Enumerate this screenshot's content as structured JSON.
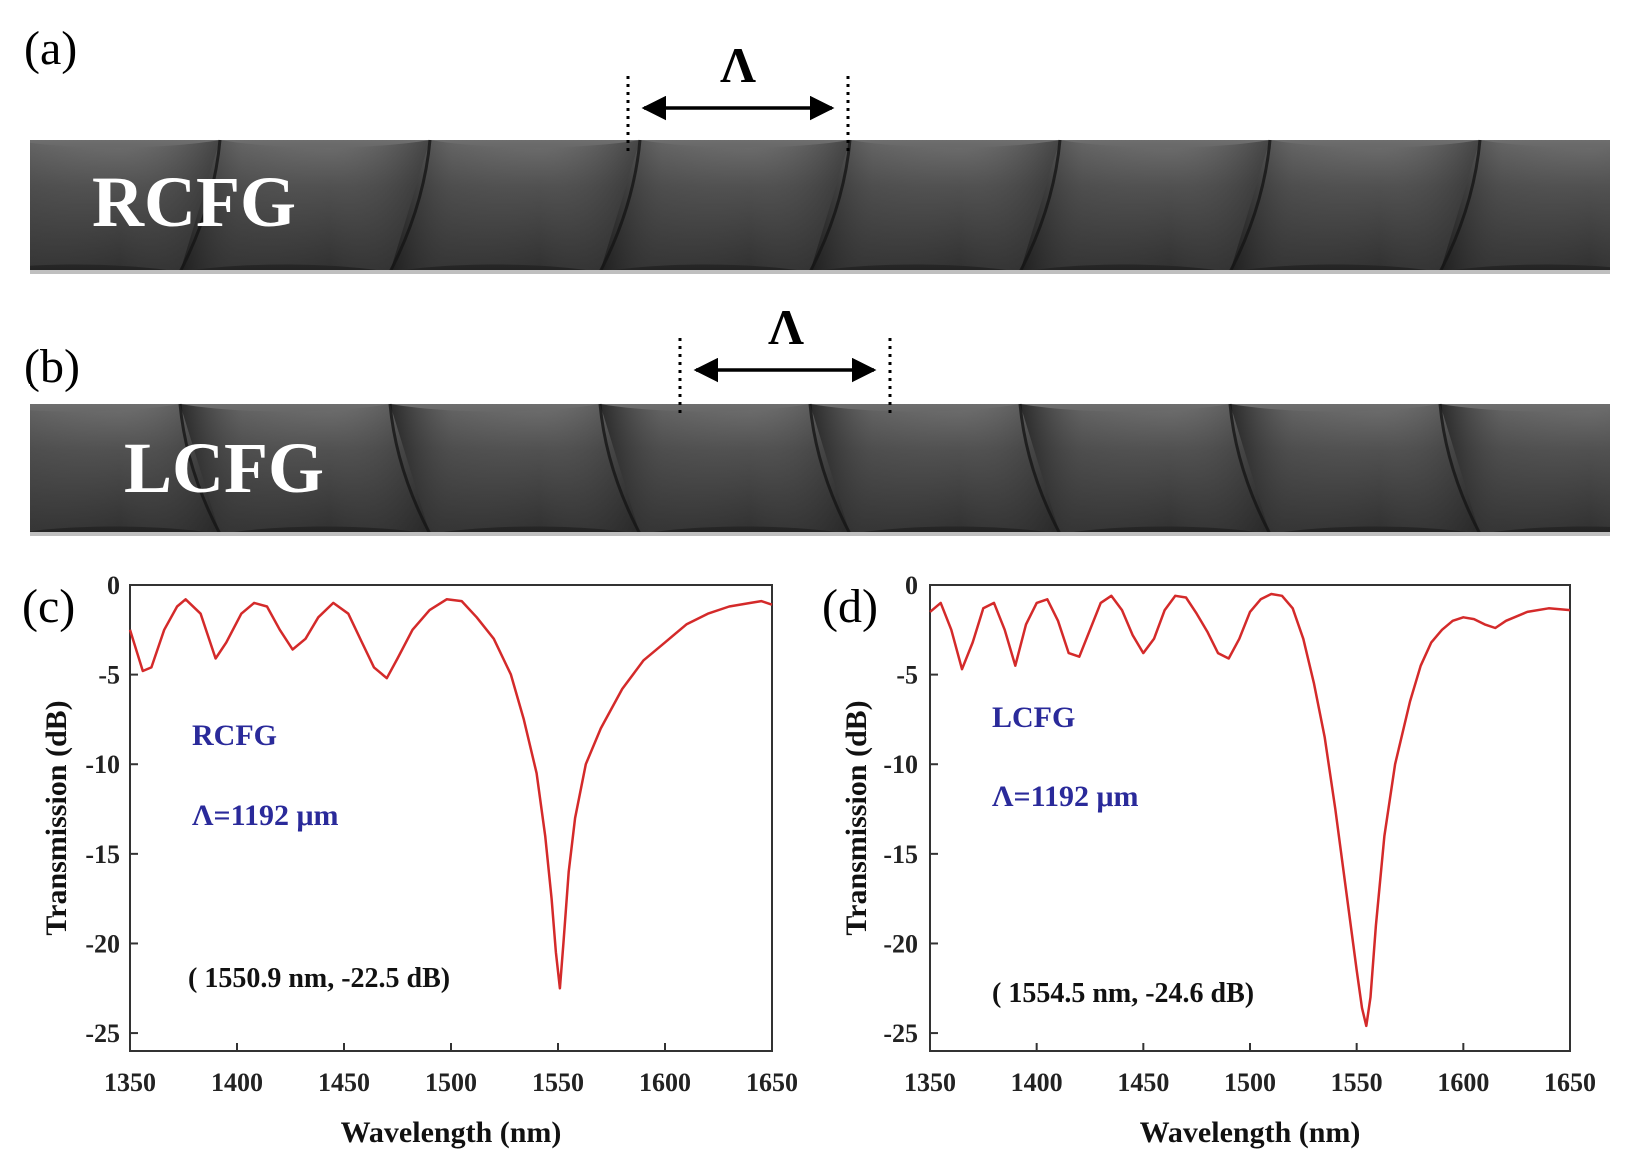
{
  "panels": {
    "a": {
      "letter": "(a)",
      "label": "RCFG",
      "period_symbol": "Λ",
      "twist": "right"
    },
    "b": {
      "letter": "(b)",
      "label": "LCFG",
      "period_symbol": "Λ",
      "twist": "left"
    }
  },
  "colors": {
    "curve": "#d42a2a",
    "annotation": "#2a2a9a",
    "fiber": "#3a3a3a"
  },
  "chart_data": [
    {
      "panel": "(c)",
      "type": "line",
      "xlabel": "Wavelength (nm)",
      "ylabel": "Transmission (dB)",
      "xlim": [
        1350,
        1650
      ],
      "ylim": [
        -26,
        0
      ],
      "xticks": [
        1350,
        1400,
        1450,
        1500,
        1550,
        1600,
        1650
      ],
      "yticks": [
        0,
        -5,
        -10,
        -15,
        -20,
        -25
      ],
      "grid": false,
      "annotations": {
        "label": "RCFG",
        "period": "Λ=1192 μm",
        "dip": "( 1550.9 nm, -22.5 dB)"
      },
      "series": [
        {
          "x": [
            1350,
            1356,
            1360,
            1366,
            1372,
            1376,
            1383,
            1390,
            1395,
            1402,
            1408,
            1414,
            1420,
            1426,
            1432,
            1438,
            1445,
            1452,
            1458,
            1464,
            1470,
            1475,
            1482,
            1490,
            1498,
            1505,
            1512,
            1520,
            1528,
            1534,
            1540,
            1544,
            1547,
            1549,
            1550.9,
            1552.5,
            1555,
            1558,
            1563,
            1570,
            1580,
            1590,
            1600,
            1610,
            1620,
            1630,
            1640,
            1645,
            1650
          ],
          "y": [
            -2.5,
            -4.8,
            -4.6,
            -2.5,
            -1.2,
            -0.8,
            -1.6,
            -4.1,
            -3.2,
            -1.6,
            -1.0,
            -1.2,
            -2.5,
            -3.6,
            -3.0,
            -1.8,
            -1.0,
            -1.6,
            -3.1,
            -4.6,
            -5.2,
            -4.1,
            -2.5,
            -1.4,
            -0.8,
            -0.9,
            -1.8,
            -3.0,
            -5.0,
            -7.5,
            -10.5,
            -14.0,
            -17.5,
            -20.5,
            -22.5,
            -20.0,
            -16.0,
            -13.0,
            -10.0,
            -8.0,
            -5.8,
            -4.2,
            -3.2,
            -2.2,
            -1.6,
            -1.2,
            -1.0,
            -0.9,
            -1.1
          ]
        }
      ]
    },
    {
      "panel": "(d)",
      "type": "line",
      "xlabel": "Wavelength (nm)",
      "ylabel": "Transmission (dB)",
      "xlim": [
        1350,
        1650
      ],
      "ylim": [
        -26,
        0
      ],
      "xticks": [
        1350,
        1400,
        1450,
        1500,
        1550,
        1600,
        1650
      ],
      "yticks": [
        0,
        -5,
        -10,
        -15,
        -20,
        -25
      ],
      "grid": false,
      "annotations": {
        "label": "LCFG",
        "period": "Λ=1192 μm",
        "dip": "( 1554.5 nm, -24.6 dB)"
      },
      "series": [
        {
          "x": [
            1350,
            1355,
            1360,
            1365,
            1370,
            1375,
            1380,
            1385,
            1390,
            1395,
            1400,
            1405,
            1410,
            1415,
            1420,
            1425,
            1430,
            1435,
            1440,
            1445,
            1450,
            1455,
            1460,
            1465,
            1470,
            1475,
            1480,
            1485,
            1490,
            1495,
            1500,
            1505,
            1510,
            1515,
            1520,
            1525,
            1530,
            1535,
            1540,
            1545,
            1550,
            1552.5,
            1554.5,
            1556.5,
            1559,
            1563,
            1568,
            1575,
            1580,
            1585,
            1590,
            1595,
            1600,
            1605,
            1610,
            1615,
            1620,
            1630,
            1640,
            1650
          ],
          "y": [
            -1.5,
            -1.0,
            -2.5,
            -4.7,
            -3.2,
            -1.3,
            -1.0,
            -2.5,
            -4.5,
            -2.2,
            -1.0,
            -0.8,
            -2.0,
            -3.8,
            -4.0,
            -2.5,
            -1.0,
            -0.6,
            -1.4,
            -2.8,
            -3.8,
            -3.0,
            -1.4,
            -0.6,
            -0.7,
            -1.6,
            -2.6,
            -3.8,
            -4.1,
            -3.0,
            -1.5,
            -0.8,
            -0.5,
            -0.6,
            -1.3,
            -3.0,
            -5.5,
            -8.5,
            -12.5,
            -17.0,
            -21.5,
            -23.6,
            -24.6,
            -23.0,
            -19.0,
            -14.0,
            -10.0,
            -6.5,
            -4.5,
            -3.2,
            -2.5,
            -2.0,
            -1.8,
            -1.9,
            -2.2,
            -2.4,
            -2.0,
            -1.5,
            -1.3,
            -1.4
          ]
        }
      ]
    }
  ]
}
